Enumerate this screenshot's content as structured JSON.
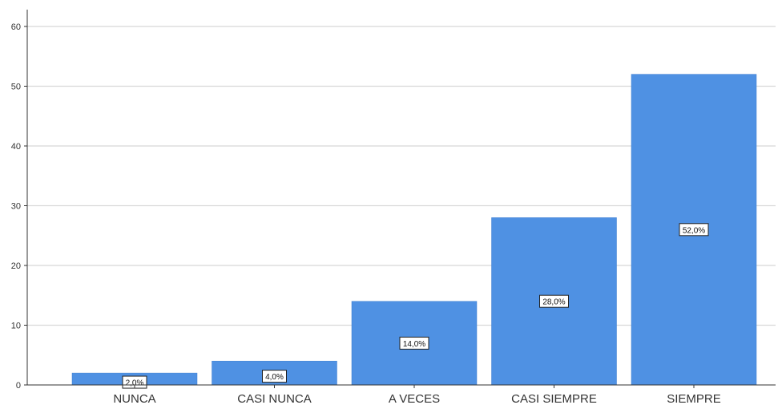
{
  "chart_data": {
    "type": "bar",
    "categories": [
      "NUNCA",
      "CASI NUNCA",
      "A VECES",
      "CASI SIEMPRE",
      "SIEMPRE"
    ],
    "values": [
      2,
      4,
      14,
      28,
      52
    ],
    "data_labels": [
      "2,0%",
      "4,0%",
      "14,0%",
      "28,0%",
      "52,0%"
    ],
    "yticks": [
      "0",
      "10",
      "20",
      "30",
      "40",
      "50",
      "60"
    ],
    "ylim": [
      0,
      60
    ],
    "grid": true,
    "colors": {
      "bar": "#4f91e3",
      "grid": "#d8d8d8",
      "axis": "#333333"
    }
  }
}
